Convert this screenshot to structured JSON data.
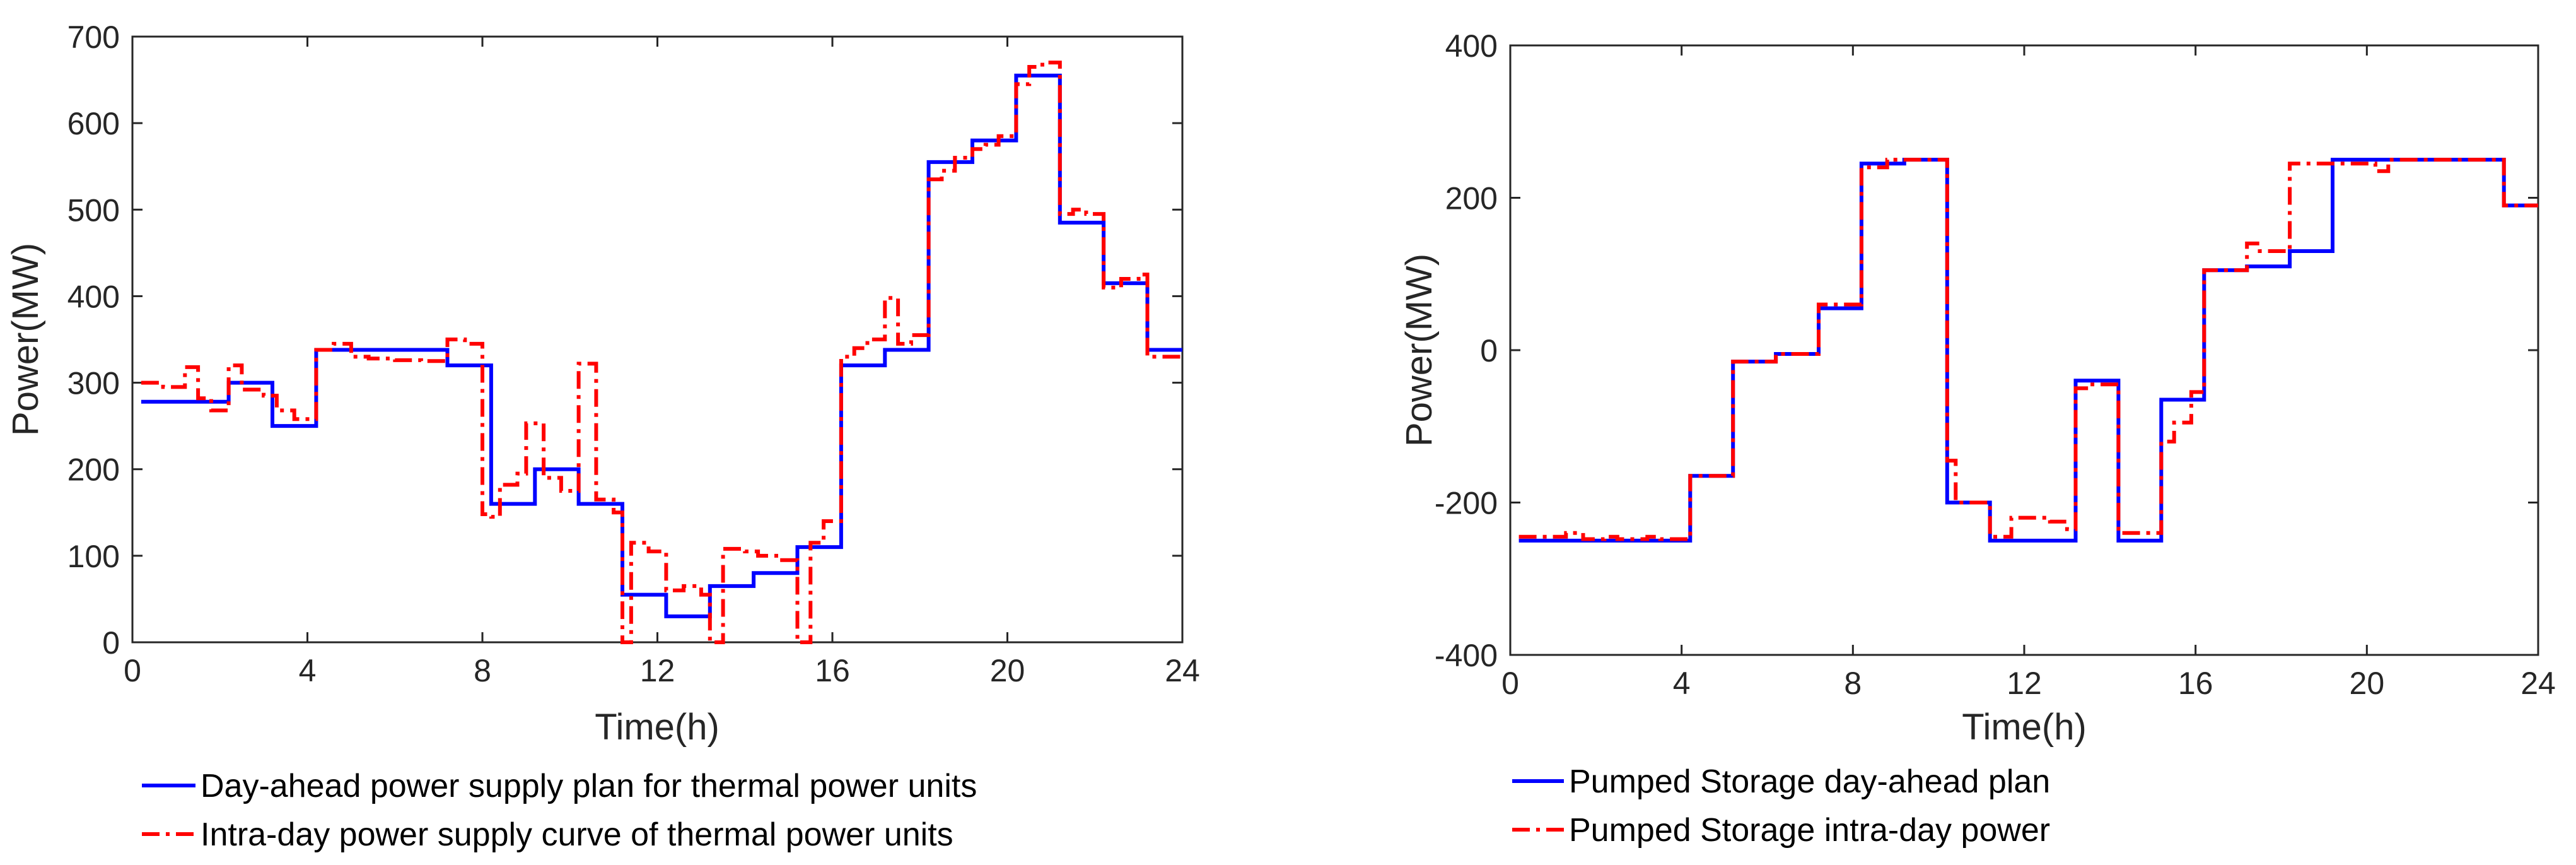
{
  "chart_data": [
    {
      "type": "line",
      "step": true,
      "title": "",
      "xlabel": "Time(h)",
      "ylabel": "Power(MW)",
      "xlim": [
        0,
        24
      ],
      "ylim": [
        0,
        700
      ],
      "xticks": [
        0,
        4,
        8,
        12,
        16,
        20,
        24
      ],
      "yticks": [
        0,
        100,
        200,
        300,
        400,
        500,
        600,
        700
      ],
      "legend_position": "below",
      "series": [
        {
          "name": "Day-ahead power supply plan for thermal power units",
          "color": "#0000ff",
          "style": "solid",
          "x": [
            0.2,
            1.2,
            2.2,
            3.2,
            4.2,
            5.2,
            6.2,
            7.2,
            8.2,
            9.2,
            10.2,
            11.2,
            12.2,
            13.2,
            14.2,
            15.2,
            16.2,
            17.2,
            18.2,
            19.2,
            20.2,
            21.2,
            22.2,
            23.2,
            24
          ],
          "values": [
            278,
            278,
            300,
            250,
            338,
            338,
            338,
            320,
            160,
            200,
            160,
            55,
            30,
            65,
            80,
            110,
            320,
            338,
            555,
            580,
            655,
            485,
            415,
            338,
            338
          ]
        },
        {
          "name": "Intra-day power supply curve of thermal power units",
          "color": "#ff0000",
          "style": "dashdot",
          "x": [
            0.2,
            0.7,
            1.2,
            1.5,
            1.8,
            2.2,
            2.5,
            3.0,
            3.3,
            3.7,
            4.2,
            4.6,
            5.0,
            5.4,
            6.0,
            6.6,
            7.2,
            7.6,
            8.0,
            8.2,
            8.4,
            8.8,
            9.0,
            9.4,
            9.8,
            10.2,
            10.6,
            11.0,
            11.2,
            11.4,
            11.8,
            12.2,
            12.6,
            13.0,
            13.2,
            13.5,
            14.0,
            14.3,
            14.8,
            15.2,
            15.5,
            15.8,
            16.2,
            16.5,
            16.8,
            17.2,
            17.5,
            17.8,
            18.2,
            18.5,
            18.8,
            19.2,
            19.5,
            19.8,
            20.2,
            20.5,
            20.8,
            21.2,
            21.5,
            21.8,
            22.2,
            22.6,
            23.0,
            23.2,
            23.6,
            24
          ],
          "values": [
            300,
            295,
            318,
            282,
            268,
            320,
            292,
            285,
            268,
            258,
            338,
            345,
            330,
            328,
            326,
            325,
            350,
            345,
            148,
            145,
            182,
            195,
            253,
            190,
            175,
            322,
            165,
            150,
            0,
            115,
            105,
            60,
            65,
            55,
            0,
            108,
            105,
            100,
            95,
            0,
            115,
            140,
            330,
            340,
            350,
            398,
            345,
            355,
            535,
            545,
            560,
            570,
            575,
            585,
            645,
            665,
            670,
            495,
            500,
            495,
            410,
            420,
            425,
            330,
            330,
            330
          ]
        }
      ]
    },
    {
      "type": "line",
      "step": true,
      "title": "",
      "xlabel": "Time(h)",
      "ylabel": "Power(MW)",
      "xlim": [
        0,
        24
      ],
      "ylim": [
        -400,
        400
      ],
      "xticks": [
        0,
        4,
        8,
        12,
        16,
        20,
        24
      ],
      "yticks": [
        -400,
        -200,
        0,
        200,
        400
      ],
      "legend_position": "below",
      "series": [
        {
          "name": "Pumped Storage day-ahead plan",
          "color": "#0000ff",
          "style": "solid",
          "x": [
            0.2,
            1.2,
            2.2,
            3.2,
            4.2,
            5.2,
            6.2,
            7.2,
            8.2,
            9.2,
            10.2,
            11.2,
            12.2,
            13.2,
            14.2,
            15.2,
            16.2,
            17.2,
            18.2,
            19.2,
            20.2,
            21.2,
            22.2,
            23.2,
            24
          ],
          "values": [
            -250,
            -250,
            -250,
            -250,
            -165,
            -15,
            -5,
            55,
            245,
            250,
            -200,
            -250,
            -250,
            -40,
            -250,
            -65,
            105,
            110,
            130,
            250,
            250,
            250,
            250,
            190,
            190
          ]
        },
        {
          "name": "Pumped Storage intra-day power",
          "color": "#ff0000",
          "style": "dashdot",
          "x": [
            0.2,
            1.0,
            1.3,
            1.7,
            2.2,
            2.5,
            3.2,
            3.5,
            4.2,
            5.2,
            6.2,
            7.2,
            8.2,
            8.8,
            10.2,
            10.4,
            11.2,
            11.7,
            12.2,
            12.6,
            13.0,
            13.2,
            13.5,
            14.2,
            15.2,
            15.5,
            15.9,
            16.2,
            17.2,
            17.5,
            18.2,
            20.2,
            20.5,
            21.2,
            22.2,
            23.2,
            24
          ],
          "values": [
            -245,
            -245,
            -240,
            -248,
            -245,
            -248,
            -245,
            -248,
            -165,
            -15,
            -5,
            60,
            240,
            250,
            -145,
            -200,
            -245,
            -220,
            -220,
            -225,
            -235,
            -50,
            -45,
            -240,
            -120,
            -95,
            -55,
            105,
            140,
            130,
            245,
            235,
            250,
            250,
            250,
            190,
            190
          ]
        }
      ]
    }
  ]
}
